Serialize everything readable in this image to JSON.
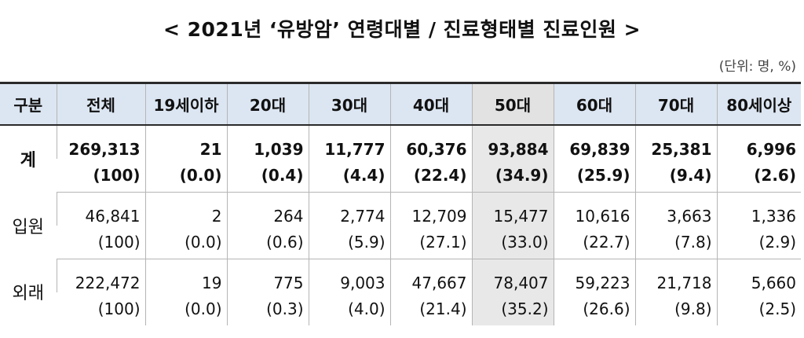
{
  "title": "< 2021년 ‘유방암’ 연령대별 / 진료형태별 진료인원 >",
  "unit": "(단위: 명, %)",
  "headers": [
    "구분",
    "전체",
    "19세이하",
    "20대",
    "30대",
    "40대",
    "50대",
    "60대",
    "70대",
    "80세이상"
  ],
  "rows": [
    {
      "label": "계",
      "counts": [
        "269,313",
        "21",
        "1,039",
        "11,777",
        "60,376",
        "93,884",
        "69,839",
        "25,381",
        "6,996"
      ],
      "shares": [
        "(100)",
        "(0.0)",
        "(0.4)",
        "(4.4)",
        "(22.4)",
        "(34.9)",
        "(25.9)",
        "(9.4)",
        "(2.6)"
      ]
    },
    {
      "label": "입원",
      "counts": [
        "46,841",
        "2",
        "264",
        "2,774",
        "12,709",
        "15,477",
        "10,616",
        "3,663",
        "1,336"
      ],
      "shares": [
        "(100)",
        "(0.0)",
        "(0.6)",
        "(5.9)",
        "(27.1)",
        "(33.0)",
        "(22.7)",
        "(7.8)",
        "(2.9)"
      ]
    },
    {
      "label": "외래",
      "counts": [
        "222,472",
        "19",
        "775",
        "9,003",
        "47,667",
        "78,407",
        "59,223",
        "21,718",
        "5,660"
      ],
      "shares": [
        "(100)",
        "(0.0)",
        "(0.3)",
        "(4.0)",
        "(21.4)",
        "(35.2)",
        "(26.6)",
        "(9.8)",
        "(2.5)"
      ]
    }
  ],
  "highlight_column": "50대",
  "colors": {
    "header_bg": "#dce6f2",
    "highlight_bg": "#e8e8e8"
  }
}
